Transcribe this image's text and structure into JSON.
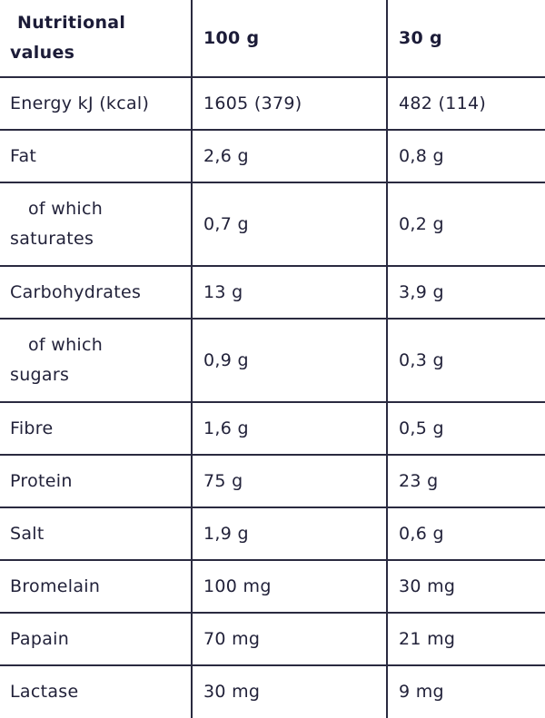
{
  "headers": [
    "Nutritional values",
    "100 g",
    "30 g"
  ],
  "rows": [
    {
      "label": "Energy kJ (kcal)",
      "per100": "1605 (379)",
      "per30": "482 (114)",
      "sub": false
    },
    {
      "label": "Fat",
      "per100": "2,6 g",
      "per30": "0,8 g",
      "sub": false
    },
    {
      "label": "of which saturates",
      "per100": "0,7 g",
      "per30": "0,2 g",
      "sub": true
    },
    {
      "label": "Carbohydrates",
      "per100": "13 g",
      "per30": "3,9 g",
      "sub": false
    },
    {
      "label": "of which sugars",
      "per100": "0,9 g",
      "per30": "0,3 g",
      "sub": true
    },
    {
      "label": "Fibre",
      "per100": "1,6 g",
      "per30": "0,5 g",
      "sub": false
    },
    {
      "label": "Protein",
      "per100": "75 g",
      "per30": "23 g",
      "sub": false
    },
    {
      "label": "Salt",
      "per100": "1,9 g",
      "per30": "0,6 g",
      "sub": false
    },
    {
      "label": "Bromelain",
      "per100": "100 mg",
      "per30": "30 mg",
      "sub": false
    },
    {
      "label": "Papain",
      "per100": "70 mg",
      "per30": "21 mg",
      "sub": false
    },
    {
      "label": "Lactase",
      "per100": "30 mg",
      "per30": "9 mg",
      "sub": false
    }
  ],
  "colors": {
    "text": "#22223a",
    "border": "#2a2a40"
  }
}
